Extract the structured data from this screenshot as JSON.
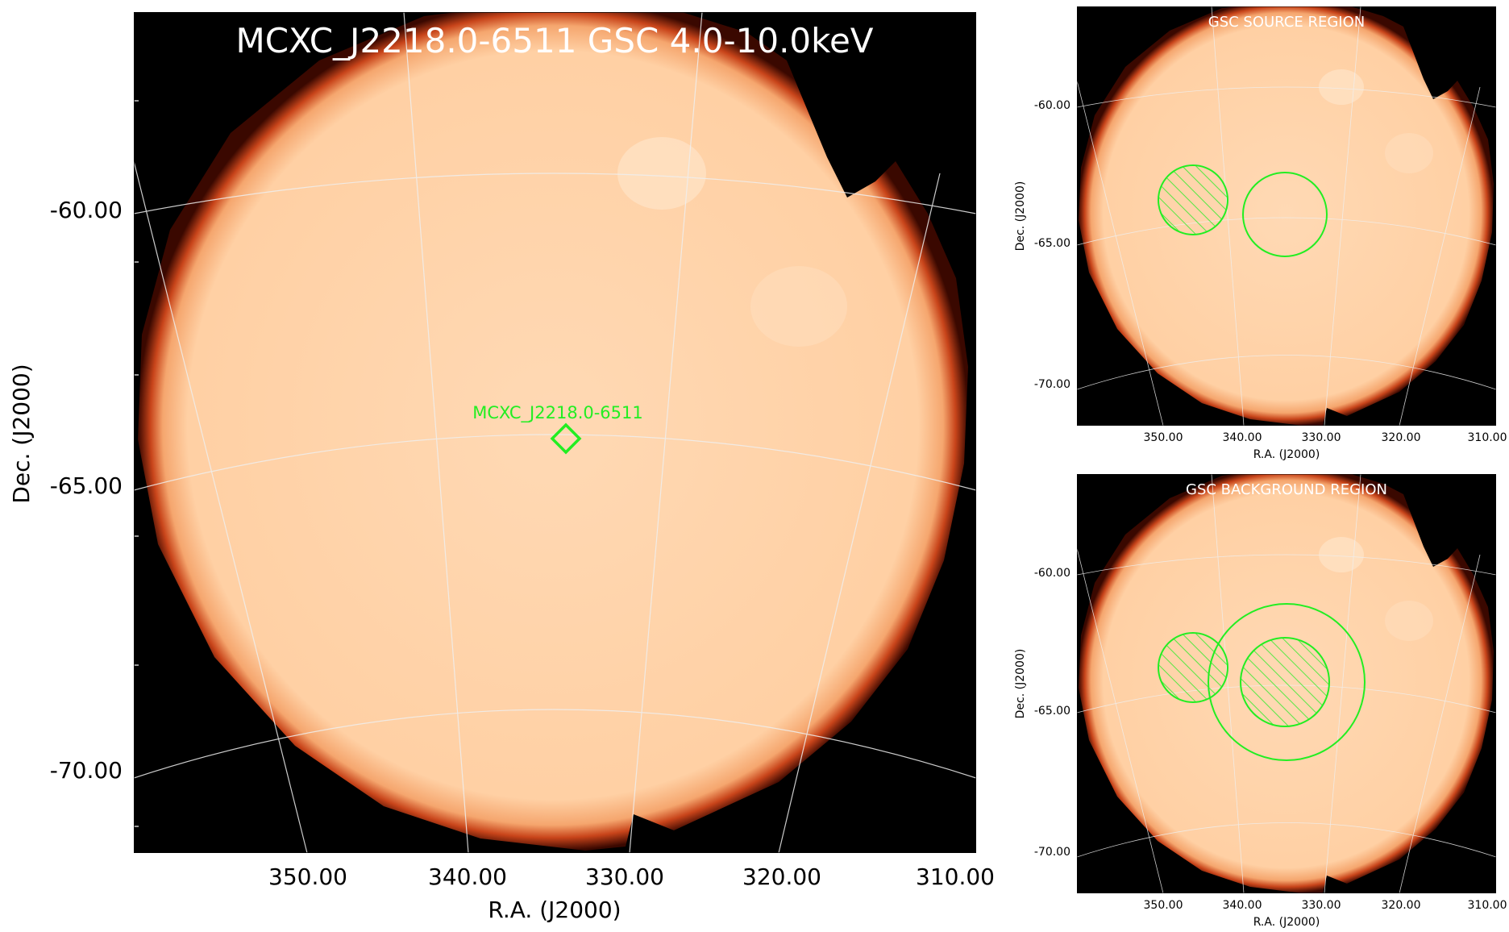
{
  "main": {
    "title": "MCXC_J2218.0-6511 GSC 4.0-10.0keV",
    "source_label": "MCXC_J2218.0-6511",
    "xlabel": "R.A. (J2000)",
    "ylabel": "Dec. (J2000)",
    "xticks": [
      "350.00",
      "340.00",
      "330.00",
      "320.00",
      "310.00"
    ],
    "yticks": [
      "-60.00",
      "-65.00",
      "-70.00"
    ]
  },
  "source_panel": {
    "title": "GSC SOURCE REGION",
    "xlabel": "R.A. (J2000)",
    "ylabel": "Dec. (J2000)",
    "xticks": [
      "350.00",
      "340.00",
      "330.00",
      "320.00",
      "310.00"
    ],
    "yticks": [
      "-60.00",
      "-65.00",
      "-70.00"
    ]
  },
  "background_panel": {
    "title": "GSC BACKGROUND REGION",
    "xlabel": "R.A. (J2000)",
    "ylabel": "Dec. (J2000)",
    "xticks": [
      "350.00",
      "340.00",
      "330.00",
      "320.00",
      "310.00"
    ],
    "yticks": [
      "-60.00",
      "-65.00",
      "-70.00"
    ]
  },
  "colors": {
    "disk": "#ffd3a8",
    "edge": "#c63a10",
    "background": "#000000",
    "region": "#22ee22",
    "grid": "#e8e8e8"
  }
}
